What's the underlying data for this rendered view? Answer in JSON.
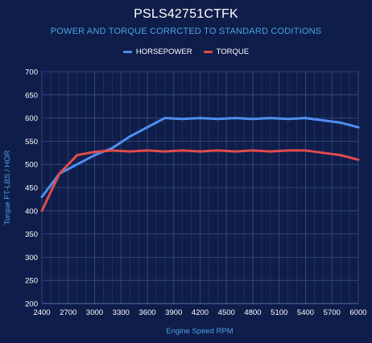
{
  "chart_data": {
    "type": "line",
    "title": "PSLS42751CTFK",
    "subtitle": "POWER AND TORQUE CORRCTED TO STANDARD CODITIONS",
    "xlabel": "Engine Speed RPM",
    "ylabel": "Torque FT-LBS / HOR",
    "xlim": [
      2400,
      6000
    ],
    "ylim": [
      200,
      700
    ],
    "x_ticks": [
      2400,
      2700,
      3000,
      3300,
      3600,
      3900,
      4200,
      4500,
      4800,
      5100,
      5400,
      5700,
      6000
    ],
    "y_ticks": [
      200,
      250,
      300,
      350,
      400,
      450,
      500,
      550,
      600,
      650,
      700
    ],
    "grid": true,
    "legend_position": "top-center",
    "series": [
      {
        "name": "HORSEPOWER",
        "color": "#4f8ff0",
        "x": [
          2400,
          2600,
          2800,
          3000,
          3200,
          3400,
          3600,
          3800,
          4000,
          4200,
          4400,
          4600,
          4800,
          5000,
          5200,
          5400,
          5600,
          5800,
          6000
        ],
        "y": [
          430,
          480,
          500,
          520,
          535,
          560,
          580,
          600,
          598,
          600,
          598,
          600,
          598,
          600,
          598,
          600,
          595,
          590,
          580
        ]
      },
      {
        "name": "TORQUE",
        "color": "#e04c4c",
        "x": [
          2400,
          2600,
          2800,
          3000,
          3200,
          3400,
          3600,
          3800,
          4000,
          4200,
          4400,
          4600,
          4800,
          5000,
          5200,
          5400,
          5600,
          5800,
          6000
        ],
        "y": [
          400,
          480,
          520,
          527,
          530,
          528,
          530,
          528,
          530,
          528,
          530,
          528,
          530,
          528,
          530,
          530,
          525,
          520,
          510
        ]
      }
    ]
  }
}
